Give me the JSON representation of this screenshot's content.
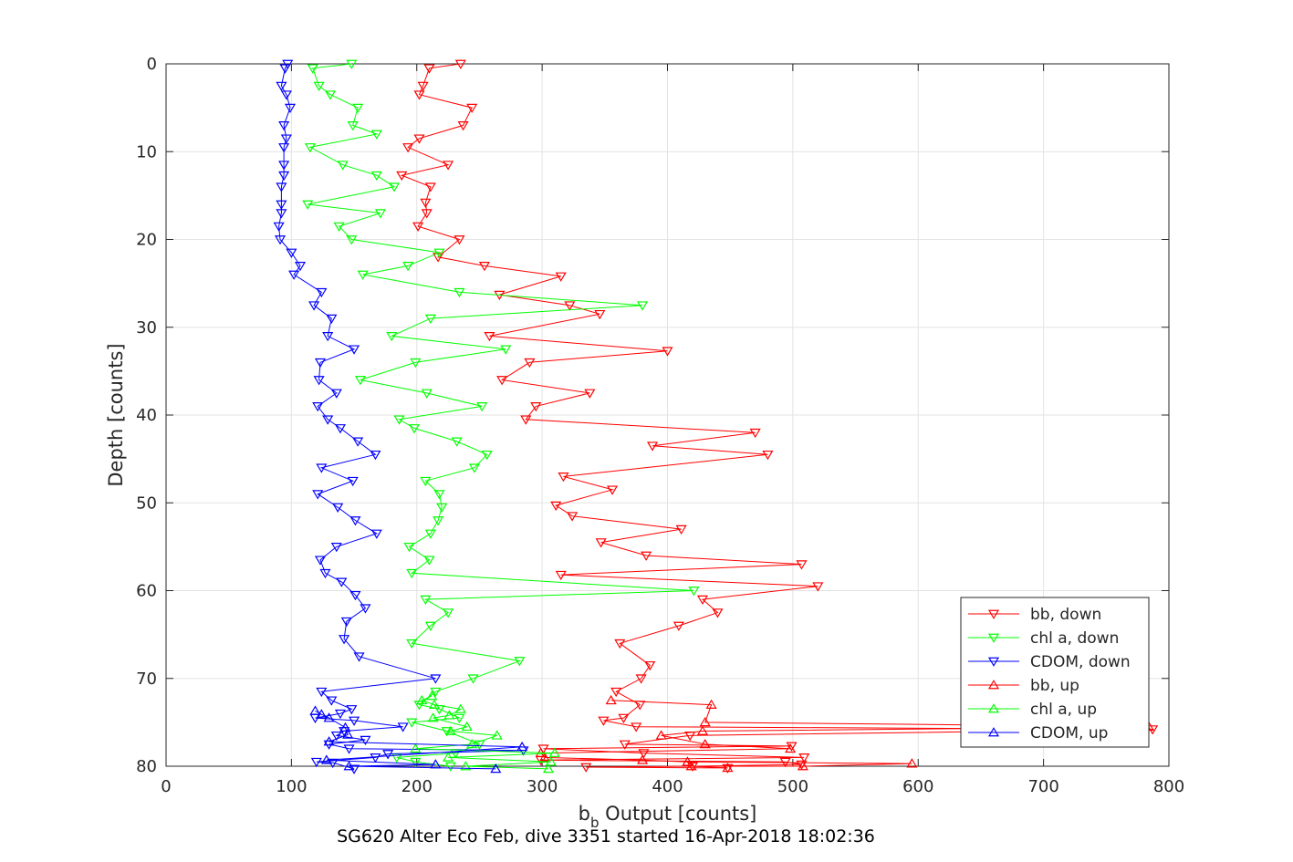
{
  "chart_data": {
    "type": "line",
    "xlabel_main": "b",
    "xlabel_sub": "b",
    "xlabel_rest": " Output [counts]",
    "ylabel": "Depth [counts]",
    "caption": "SG620 Alter Eco Feb, dive 3351 started 16-Apr-2018 18:02:36",
    "xlim": [
      0,
      800
    ],
    "ylim": [
      0,
      80
    ],
    "y_reversed": true,
    "xticks": [
      0,
      100,
      200,
      300,
      400,
      500,
      600,
      700,
      800
    ],
    "yticks": [
      0,
      10,
      20,
      30,
      40,
      50,
      60,
      70,
      80
    ],
    "grid": true,
    "legend_position": "bottom-right",
    "series": [
      {
        "name": "bb, down",
        "color": "#ff0000",
        "marker": "triangle-down",
        "points": [
          [
            235,
            0
          ],
          [
            210,
            0.5
          ],
          [
            205,
            2.5
          ],
          [
            202,
            3.5
          ],
          [
            244,
            5
          ],
          [
            237,
            7
          ],
          [
            202,
            8.5
          ],
          [
            193,
            9.5
          ],
          [
            225,
            11.5
          ],
          [
            188,
            12.7
          ],
          [
            211,
            14
          ],
          [
            207,
            15.8
          ],
          [
            208,
            17
          ],
          [
            201,
            18.5
          ],
          [
            234,
            20
          ],
          [
            217,
            22
          ],
          [
            254,
            23
          ],
          [
            315,
            24.2
          ],
          [
            266,
            26.3
          ],
          [
            322,
            27.5
          ],
          [
            346,
            28.5
          ],
          [
            258,
            31
          ],
          [
            400,
            32.7
          ],
          [
            290,
            34
          ],
          [
            268,
            36
          ],
          [
            338,
            37.5
          ],
          [
            295,
            39
          ],
          [
            287,
            40.5
          ],
          [
            470,
            42
          ],
          [
            388,
            43.5
          ],
          [
            480,
            44.5
          ],
          [
            317,
            47
          ],
          [
            356,
            48.5
          ],
          [
            311,
            50.3
          ],
          [
            324,
            51.5
          ],
          [
            411,
            53
          ],
          [
            347,
            54.5
          ],
          [
            383,
            56
          ],
          [
            507,
            57
          ],
          [
            315,
            58.2
          ],
          [
            520,
            59.5
          ],
          [
            428,
            61
          ],
          [
            440,
            62.5
          ],
          [
            409,
            64
          ],
          [
            362,
            66
          ],
          [
            386,
            68.5
          ],
          [
            379,
            70
          ],
          [
            359,
            71.5
          ],
          [
            378,
            73
          ],
          [
            365,
            74.5
          ],
          [
            349,
            74.8
          ],
          [
            375,
            75.5
          ],
          [
            787,
            75.8
          ],
          [
            418,
            76.5
          ],
          [
            366,
            77.5
          ],
          [
            499,
            77.7
          ],
          [
            301,
            78
          ],
          [
            381,
            78.5
          ],
          [
            509,
            79
          ],
          [
            299,
            79.3
          ],
          [
            494,
            79.5
          ],
          [
            507,
            79.8
          ],
          [
            420,
            80
          ],
          [
            335,
            80.1
          ],
          [
            448,
            80.2
          ]
        ]
      },
      {
        "name": "chl a, down",
        "color": "#00ff00",
        "marker": "triangle-down",
        "points": [
          [
            148,
            0
          ],
          [
            117,
            0.5
          ],
          [
            122,
            2.5
          ],
          [
            131,
            3.5
          ],
          [
            153,
            5
          ],
          [
            149,
            7
          ],
          [
            168,
            8
          ],
          [
            115,
            9.5
          ],
          [
            141,
            11.5
          ],
          [
            168,
            12.7
          ],
          [
            182,
            14
          ],
          [
            113,
            16
          ],
          [
            171,
            17
          ],
          [
            138,
            18.5
          ],
          [
            148,
            20
          ],
          [
            218,
            21.5
          ],
          [
            193,
            23
          ],
          [
            157,
            24
          ],
          [
            234,
            26
          ],
          [
            380,
            27.5
          ],
          [
            211,
            29
          ],
          [
            180,
            31
          ],
          [
            271,
            32.5
          ],
          [
            199,
            34
          ],
          [
            155,
            36
          ],
          [
            208,
            37.5
          ],
          [
            252,
            39
          ],
          [
            186,
            40.5
          ],
          [
            198,
            41.5
          ],
          [
            232,
            43
          ],
          [
            256,
            44.5
          ],
          [
            246,
            46
          ],
          [
            207,
            47.5
          ],
          [
            218,
            49
          ],
          [
            220,
            50.5
          ],
          [
            217,
            52
          ],
          [
            211,
            53.5
          ],
          [
            194,
            55
          ],
          [
            210,
            56.5
          ],
          [
            196,
            58
          ],
          [
            421,
            60
          ],
          [
            207,
            61
          ],
          [
            225,
            62.5
          ],
          [
            211,
            64
          ],
          [
            196,
            66
          ],
          [
            282,
            68
          ],
          [
            245,
            70
          ],
          [
            215,
            71.5
          ],
          [
            202,
            73
          ],
          [
            218,
            73.5
          ],
          [
            234,
            74.5
          ],
          [
            196,
            75
          ],
          [
            224,
            76
          ],
          [
            250,
            77.5
          ],
          [
            231,
            78.5
          ],
          [
            184,
            79
          ],
          [
            199,
            79.5
          ],
          [
            227,
            80
          ]
        ]
      },
      {
        "name": "CDOM, down",
        "color": "#0000ff",
        "marker": "triangle-down",
        "points": [
          [
            97,
            0
          ],
          [
            95,
            0.5
          ],
          [
            92,
            2.5
          ],
          [
            96,
            3.5
          ],
          [
            99,
            5
          ],
          [
            94,
            7
          ],
          [
            96,
            8.5
          ],
          [
            94,
            9.5
          ],
          [
            94,
            11.5
          ],
          [
            94,
            12.7
          ],
          [
            92,
            14
          ],
          [
            92,
            16
          ],
          [
            92,
            17
          ],
          [
            90,
            18.5
          ],
          [
            91,
            20
          ],
          [
            100,
            21.5
          ],
          [
            107,
            23
          ],
          [
            102,
            24
          ],
          [
            124,
            26
          ],
          [
            118,
            27.5
          ],
          [
            132,
            29
          ],
          [
            129,
            31
          ],
          [
            150,
            32.5
          ],
          [
            123,
            34
          ],
          [
            122,
            36
          ],
          [
            136,
            37.5
          ],
          [
            121,
            39
          ],
          [
            129,
            40.5
          ],
          [
            139,
            41.5
          ],
          [
            153,
            43
          ],
          [
            167,
            44.5
          ],
          [
            124,
            46
          ],
          [
            149,
            47.5
          ],
          [
            121,
            49
          ],
          [
            137,
            50.5
          ],
          [
            151,
            52
          ],
          [
            168,
            53.5
          ],
          [
            136,
            55
          ],
          [
            123,
            56.5
          ],
          [
            127,
            58
          ],
          [
            140,
            59
          ],
          [
            151,
            60.5
          ],
          [
            159,
            62
          ],
          [
            144,
            63.5
          ],
          [
            142,
            65.5
          ],
          [
            154,
            67.5
          ],
          [
            215,
            70
          ],
          [
            124,
            71.5
          ],
          [
            132,
            72.5
          ],
          [
            148,
            73.5
          ],
          [
            139,
            74
          ],
          [
            119,
            74.5
          ],
          [
            150,
            74.8
          ],
          [
            189,
            75.5
          ],
          [
            142,
            76
          ],
          [
            136,
            76.5
          ],
          [
            159,
            77
          ],
          [
            130,
            77.5
          ],
          [
            146,
            78
          ],
          [
            285,
            78.2
          ],
          [
            177,
            78.6
          ],
          [
            167,
            79
          ],
          [
            120,
            79.5
          ],
          [
            133,
            79.6
          ],
          [
            150,
            80.3
          ]
        ]
      },
      {
        "name": "bb, up",
        "color": "#ff0000",
        "marker": "triangle-up",
        "points": [
          [
            448,
            80.2
          ],
          [
            419,
            80
          ],
          [
            508,
            80
          ],
          [
            595,
            79.7
          ],
          [
            416,
            79.5
          ],
          [
            380,
            79.3
          ],
          [
            302,
            79
          ],
          [
            299,
            78.5
          ],
          [
            498,
            78
          ],
          [
            430,
            77.5
          ],
          [
            395,
            76.5
          ],
          [
            428,
            76
          ],
          [
            784,
            75.5
          ],
          [
            430,
            75
          ],
          [
            435,
            73
          ],
          [
            355,
            72.5
          ]
        ]
      },
      {
        "name": "chl a, up",
        "color": "#00ff00",
        "marker": "triangle-up",
        "points": [
          [
            305,
            80.3
          ],
          [
            239,
            80
          ],
          [
            307,
            79.5
          ],
          [
            225,
            79
          ],
          [
            310,
            78.5
          ],
          [
            199,
            78
          ],
          [
            244,
            77.5
          ],
          [
            264,
            76.5
          ],
          [
            227,
            76
          ],
          [
            240,
            75.5
          ],
          [
            213,
            74.5
          ],
          [
            226,
            74.2
          ],
          [
            235,
            73.5
          ],
          [
            214,
            73
          ],
          [
            204,
            72.5
          ],
          [
            212,
            72
          ]
        ]
      },
      {
        "name": "CDOM, up",
        "color": "#0000ff",
        "marker": "triangle-up",
        "points": [
          [
            263,
            80.3
          ],
          [
            146,
            80
          ],
          [
            215,
            79.8
          ],
          [
            128,
            79.3
          ],
          [
            284,
            77.8
          ],
          [
            130,
            77.2
          ],
          [
            145,
            76.4
          ],
          [
            143,
            75.6
          ],
          [
            130,
            74.5
          ],
          [
            124,
            74.1
          ],
          [
            119,
            73.7
          ]
        ]
      }
    ]
  }
}
